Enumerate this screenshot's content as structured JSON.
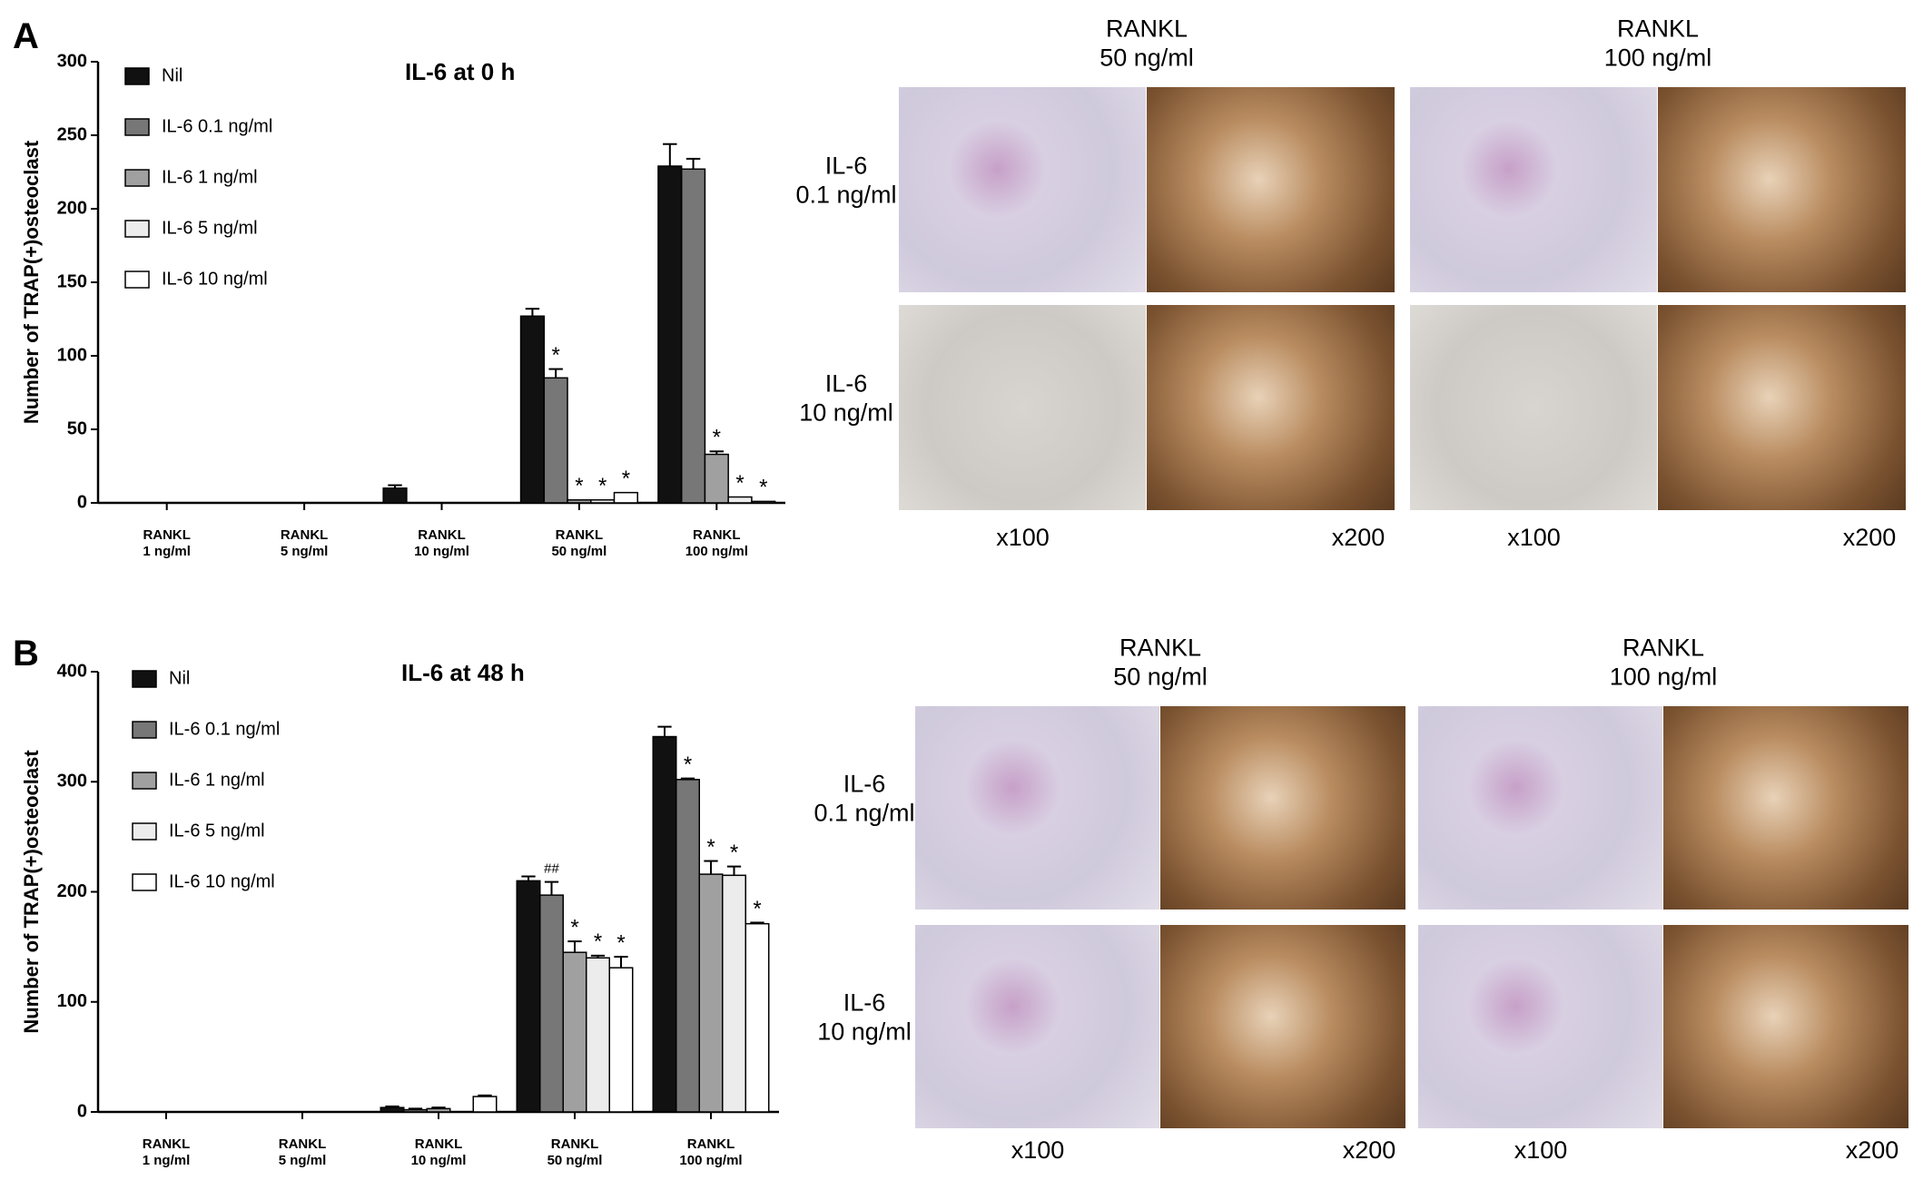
{
  "chart_data": [
    {
      "type": "bar",
      "title": "IL-6 at  0 h",
      "y_label": "Number of TRAP(+)osteoclast",
      "categories": [
        "RANKL\n1 ng/ml",
        "RANKL\n5 ng/ml",
        "RANKL\n10 ng/ml",
        "RANKL\n50 ng/ml",
        "RANKL\n100 ng/ml"
      ],
      "series": [
        {
          "name": "Nil",
          "color": "#111111",
          "values": [
            0,
            0,
            10,
            127,
            229
          ],
          "errors": [
            null,
            null,
            2,
            5,
            15
          ],
          "markers": [
            null,
            null,
            null,
            null,
            null
          ]
        },
        {
          "name": "IL-6 0.1 ng/ml",
          "color": "#777777",
          "values": [
            0,
            0,
            0,
            85,
            227
          ],
          "errors": [
            null,
            null,
            null,
            6,
            7
          ],
          "markers": [
            null,
            null,
            null,
            "*",
            null
          ]
        },
        {
          "name": "IL-6 1 ng/ml",
          "color": "#a0a0a0",
          "values": [
            0,
            0,
            0,
            2,
            33
          ],
          "errors": [
            null,
            null,
            null,
            null,
            2
          ],
          "markers": [
            null,
            null,
            null,
            "*",
            "*"
          ]
        },
        {
          "name": "IL-6 5 ng/ml",
          "color": "#ececec",
          "values": [
            0,
            0,
            0,
            2,
            4
          ],
          "errors": [
            null,
            null,
            null,
            null,
            null
          ],
          "markers": [
            null,
            null,
            null,
            "*",
            "*"
          ]
        },
        {
          "name": "IL-6 10 ng/ml",
          "color": "#ffffff",
          "values": [
            0,
            0,
            0,
            7,
            1
          ],
          "errors": [
            null,
            null,
            null,
            null,
            null
          ],
          "markers": [
            null,
            null,
            null,
            "*",
            "*"
          ]
        }
      ],
      "ylim": [
        0,
        300
      ],
      "yticks": [
        0,
        50,
        100,
        150,
        200,
        250,
        300
      ]
    },
    {
      "type": "bar",
      "title": "IL-6 at 48 h",
      "y_label": "Number of TRAP(+)osteoclast",
      "categories": [
        "RANKL\n1 ng/ml",
        "RANKL\n5 ng/ml",
        "RANKL\n10 ng/ml",
        "RANKL\n50 ng/ml",
        "RANKL\n100 ng/ml"
      ],
      "series": [
        {
          "name": "Nil",
          "color": "#111111",
          "values": [
            0,
            0,
            4,
            210,
            341
          ],
          "errors": [
            null,
            null,
            1,
            4,
            9
          ],
          "markers": [
            null,
            null,
            null,
            null,
            null
          ]
        },
        {
          "name": "IL-6 0.1 ng/ml",
          "color": "#777777",
          "values": [
            0,
            0,
            2,
            197,
            302
          ],
          "errors": [
            null,
            null,
            1,
            12,
            1
          ],
          "markers": [
            null,
            null,
            null,
            "##",
            "*"
          ]
        },
        {
          "name": "IL-6 1 ng/ml",
          "color": "#a0a0a0",
          "values": [
            0,
            0,
            3,
            145,
            216
          ],
          "errors": [
            null,
            null,
            1,
            10,
            12
          ],
          "markers": [
            null,
            null,
            null,
            "*",
            "*"
          ]
        },
        {
          "name": "IL-6 5 ng/ml",
          "color": "#ececec",
          "values": [
            0,
            0,
            0,
            140,
            215
          ],
          "errors": [
            null,
            null,
            null,
            2,
            8
          ],
          "markers": [
            null,
            null,
            null,
            "*",
            "*"
          ]
        },
        {
          "name": "IL-6 10 ng/ml",
          "color": "#ffffff",
          "values": [
            0,
            0,
            14,
            131,
            171
          ],
          "errors": [
            null,
            null,
            1,
            10,
            1
          ],
          "markers": [
            null,
            null,
            null,
            "*",
            "*"
          ]
        }
      ],
      "ylim": [
        0,
        400
      ],
      "yticks": [
        0,
        100,
        200,
        300,
        400
      ]
    }
  ],
  "panels": [
    {
      "label": "A",
      "columns": [
        "RANKL\n50 ng/ml",
        "RANKL\n100 ng/ml"
      ],
      "rows": [
        "IL-6\n0.1 ng/ml",
        "IL-6\n10 ng/ml"
      ],
      "magnifications": [
        "x100",
        "x200",
        "x100",
        "x200"
      ]
    },
    {
      "label": "B",
      "columns": [
        "RANKL\n50 ng/ml",
        "RANKL\n100 ng/ml"
      ],
      "rows": [
        "IL-6\n0.1 ng/ml",
        "IL-6\n10 ng/ml"
      ],
      "magnifications": [
        "x100",
        "x200",
        "x100",
        "x200"
      ]
    }
  ]
}
